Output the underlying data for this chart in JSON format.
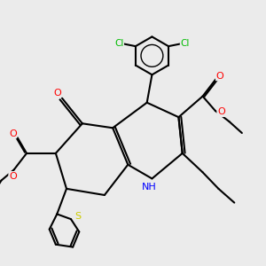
{
  "background_color": "#ebebeb",
  "atom_colors": {
    "C": "#000000",
    "H": "#000000",
    "N": "#0000ff",
    "O": "#ff0000",
    "S": "#cccc00",
    "Cl": "#00bb00"
  },
  "bond_color": "#000000",
  "bond_width": 1.5
}
